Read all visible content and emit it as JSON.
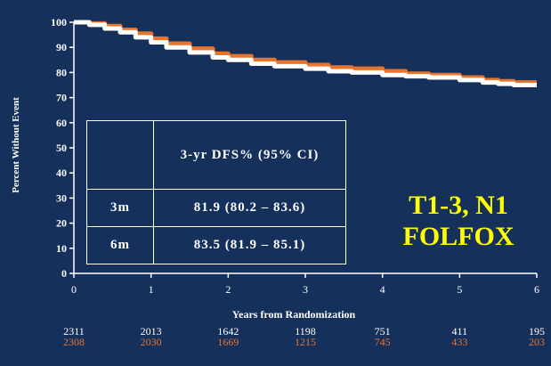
{
  "chart_data": {
    "type": "line",
    "xlabel": "Years from Randomization",
    "ylabel": "Percent Without Event",
    "x_ticks": [
      0,
      1,
      2,
      3,
      4,
      5,
      6
    ],
    "y_ticks": [
      0,
      10,
      20,
      30,
      40,
      50,
      60,
      70,
      80,
      90,
      100
    ],
    "xlim": [
      0,
      6
    ],
    "ylim": [
      0,
      100
    ],
    "series": [
      {
        "color": "#ffffff",
        "x": [
          0,
          0.2,
          0.4,
          0.6,
          0.8,
          1.0,
          1.2,
          1.5,
          1.8,
          2.0,
          2.3,
          2.6,
          3.0,
          3.3,
          3.6,
          4.0,
          4.3,
          4.6,
          5.0,
          5.3,
          5.5,
          5.7,
          6.0
        ],
        "y": [
          100,
          99,
          97.5,
          96,
          94,
          92,
          90,
          88,
          86,
          85,
          83.5,
          82.5,
          81.5,
          80.5,
          80,
          79,
          78.5,
          78,
          77,
          76,
          75.5,
          75,
          75
        ]
      },
      {
        "color": "#e8742c",
        "x": [
          0,
          0.2,
          0.4,
          0.6,
          0.8,
          1.0,
          1.2,
          1.5,
          1.8,
          2.0,
          2.3,
          2.6,
          3.0,
          3.3,
          3.6,
          4.0,
          4.3,
          4.6,
          5.0,
          5.3,
          5.5,
          5.7,
          6.0
        ],
        "y": [
          100,
          99.5,
          98.5,
          97,
          95.5,
          93.5,
          91.5,
          89.5,
          87.5,
          86.5,
          85,
          84,
          83,
          82,
          81.5,
          80.5,
          79.5,
          79,
          78,
          77,
          76.5,
          76,
          76
        ]
      }
    ],
    "at_risk": {
      "white": [
        "2311",
        "2013",
        "1642",
        "1198",
        "751",
        "411",
        "195"
      ],
      "orange": [
        "2308",
        "2030",
        "1669",
        "1215",
        "745",
        "433",
        "203"
      ]
    }
  },
  "table": {
    "header": [
      "",
      "3-yr DFS% (95% CI)"
    ],
    "rows": [
      [
        "3m",
        "81.9 (80.2 – 83.6)"
      ],
      [
        "6m",
        "83.5 (81.9 – 85.1)"
      ]
    ]
  },
  "overlay": {
    "line1": "T1-3, N1",
    "line2": "FOLFOX",
    "color": "#ffff00"
  },
  "colors": {
    "background": "#16305c",
    "axis": "#ffffff"
  }
}
